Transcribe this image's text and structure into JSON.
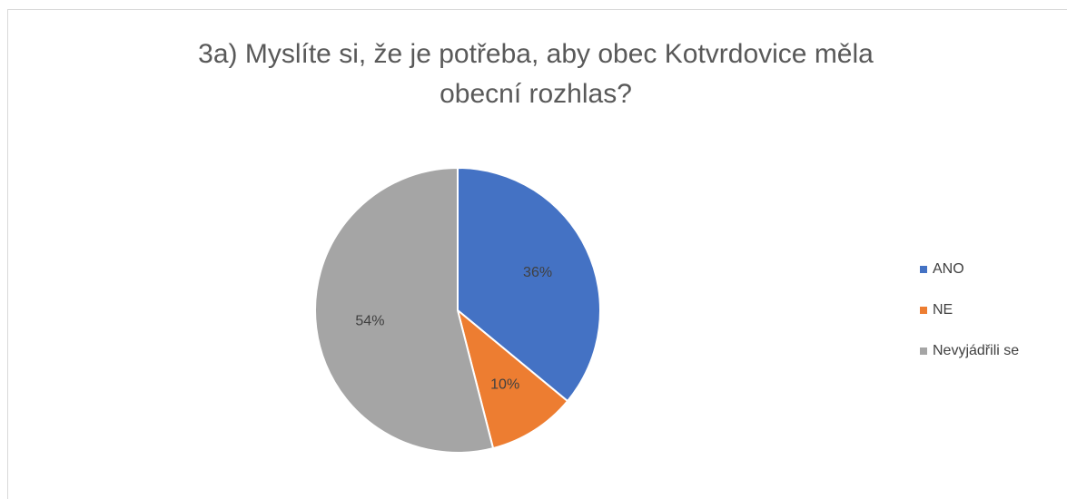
{
  "chart_data": {
    "type": "pie",
    "title": "3a) Myslíte si, že je potřeba, aby obec Kotvrdovice měla obecní rozhlas?",
    "categories": [
      "ANO",
      "NE",
      "Nevyjádřili se"
    ],
    "values": [
      36,
      10,
      54
    ],
    "value_labels": [
      "36%",
      "10%",
      "54%"
    ],
    "colors": [
      "#4472c4",
      "#ed7d31",
      "#a5a5a5"
    ],
    "legend": "right"
  }
}
